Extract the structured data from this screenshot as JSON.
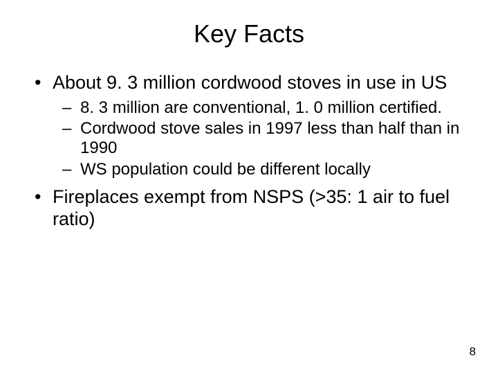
{
  "slide": {
    "title": "Key Facts",
    "bullets": [
      {
        "text": "About 9. 3 million cordwood stoves in use in US",
        "sub": [
          "8. 3 million are conventional, 1. 0 million certified.",
          "Cordwood stove sales in 1997 less than half than in 1990",
          "WS population could be different locally"
        ]
      },
      {
        "text": "Fireplaces exempt from NSPS (>35: 1 air to fuel ratio)",
        "sub": []
      }
    ],
    "page_number": "8"
  },
  "style": {
    "background_color": "#ffffff",
    "text_color": "#000000",
    "title_fontsize": 36,
    "bullet_l1_fontsize": 27,
    "bullet_l2_fontsize": 24,
    "page_number_fontsize": 17,
    "font_family": "Arial"
  }
}
